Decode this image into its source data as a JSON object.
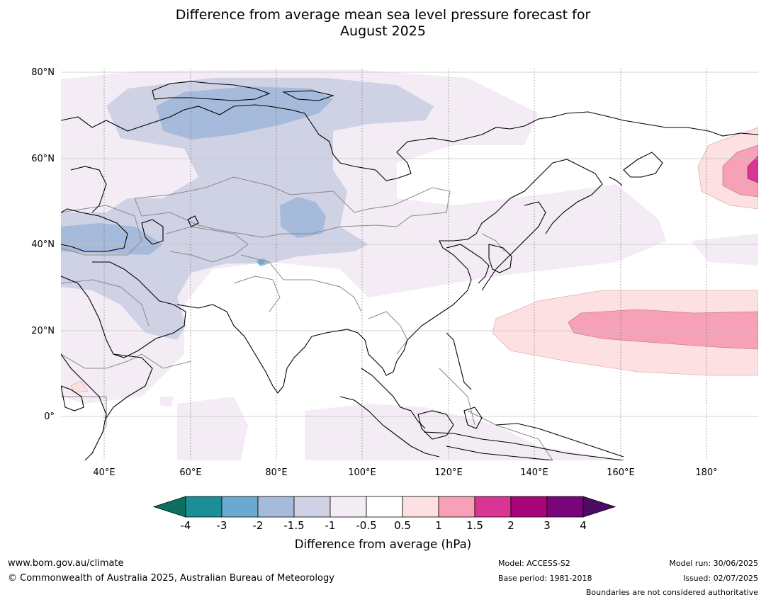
{
  "title_line1": "Difference from average mean sea level pressure forecast for",
  "title_line2": "August 2025",
  "map": {
    "lat_labels": [
      "80°N",
      "60°N",
      "40°N",
      "20°N",
      "0°"
    ],
    "lon_labels": [
      "40°E",
      "60°E",
      "80°E",
      "100°E",
      "120°E",
      "140°E",
      "160°E",
      "180°"
    ]
  },
  "colorbar": {
    "ticks": [
      "-4",
      "-3",
      "-2",
      "-1.5",
      "-1",
      "-0.5",
      "0.5",
      "1",
      "1.5",
      "2",
      "3",
      "4"
    ],
    "colors": [
      "#0e6e62",
      "#1b8e96",
      "#6aaad0",
      "#a6badb",
      "#cfd1e4",
      "#f4ecf5",
      "#ffffff",
      "#fde0e1",
      "#f7a1b9",
      "#d93594",
      "#a8057a",
      "#7a057a",
      "#4b0a63"
    ],
    "label": "Difference from average (hPa)"
  },
  "footer": {
    "url": "www.bom.gov.au/climate",
    "copyright": "© Commonwealth of Australia 2025, Australian Bureau of Meteorology",
    "model": "Model: ACCESS-S2",
    "base_period": "Base period: 1981-2018",
    "model_run": "Model run: 30/06/2025",
    "issued": "Issued: 02/07/2025",
    "disclaimer": "Boundaries are not considered authoritative"
  }
}
